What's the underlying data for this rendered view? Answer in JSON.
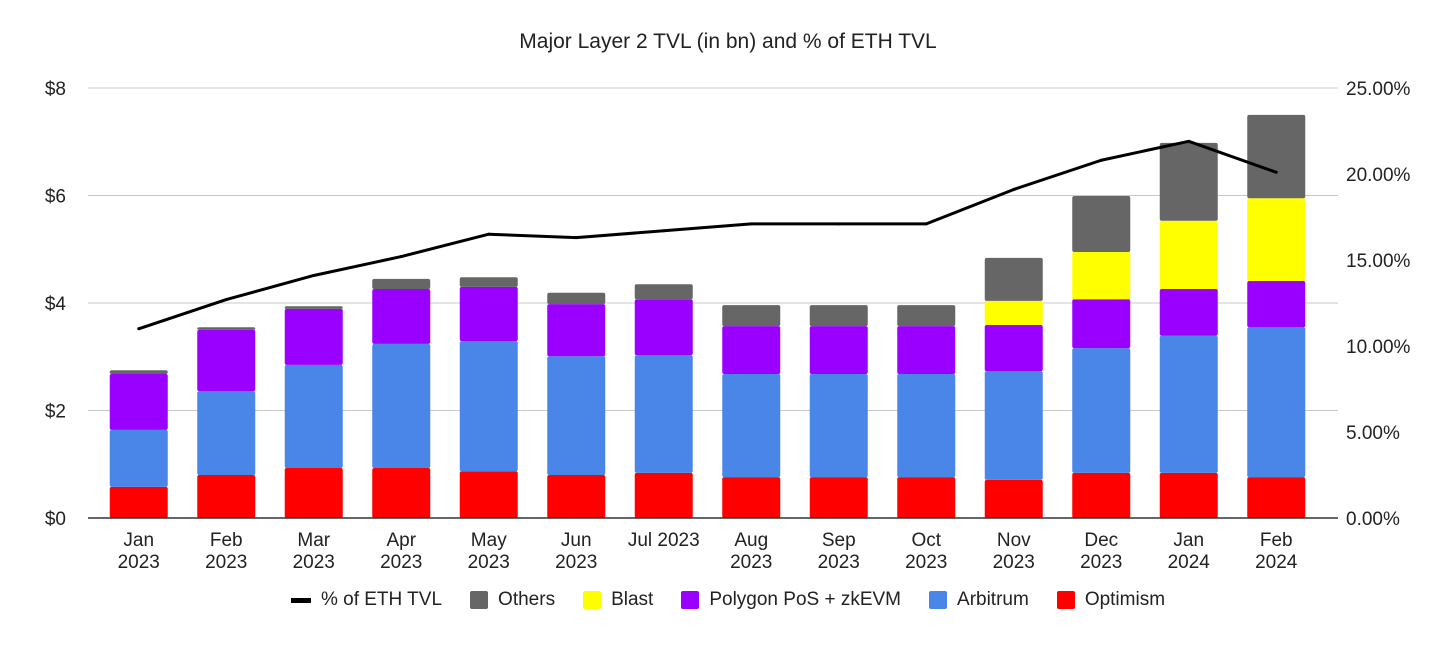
{
  "chart_data": {
    "type": "bar",
    "stacked": true,
    "title": "Major Layer 2 TVL (in bn) and % of ETH TVL",
    "categories": [
      "Jan\n2023",
      "Feb\n2023",
      "Mar\n2023",
      "Apr\n2023",
      "May\n2023",
      "Jun\n2023",
      "Jul 2023",
      "Aug\n2023",
      "Sep\n2023",
      "Oct\n2023",
      "Nov\n2023",
      "Dec\n2023",
      "Jan\n2024",
      "Feb\n2024"
    ],
    "ylim": [
      0,
      8
    ],
    "yticks": [
      "$0",
      "$2",
      "$4",
      "$6",
      "$8"
    ],
    "y2lim": [
      0,
      25
    ],
    "y2ticks": [
      "0.00%",
      "5.00%",
      "10.00%",
      "15.00%",
      "20.00%",
      "25.00%"
    ],
    "grid": true,
    "legend_position": "bottom",
    "series": [
      {
        "name": "Optimism",
        "color": "#ff0000",
        "values": [
          0.58,
          0.8,
          0.93,
          0.93,
          0.87,
          0.8,
          0.84,
          0.76,
          0.76,
          0.76,
          0.71,
          0.84,
          0.84,
          0.76
        ]
      },
      {
        "name": "Arbitrum",
        "color": "#4a86e8",
        "values": [
          1.06,
          1.56,
          1.92,
          2.31,
          2.42,
          2.21,
          2.19,
          1.92,
          1.92,
          1.92,
          2.02,
          2.32,
          2.55,
          2.79
        ]
      },
      {
        "name": "Polygon PoS + zkEVM",
        "color": "#9900ff",
        "values": [
          1.04,
          1.14,
          1.04,
          1.02,
          1.01,
          0.97,
          1.04,
          0.89,
          0.89,
          0.89,
          0.86,
          0.91,
          0.87,
          0.86
        ]
      },
      {
        "name": "Blast",
        "color": "#ffff00",
        "values": [
          0,
          0,
          0,
          0,
          0,
          0,
          0,
          0,
          0,
          0,
          0.45,
          0.88,
          1.27,
          1.54
        ]
      },
      {
        "name": "Others",
        "color": "#666666",
        "values": [
          0.07,
          0.05,
          0.05,
          0.19,
          0.18,
          0.21,
          0.28,
          0.39,
          0.39,
          0.39,
          0.8,
          1.04,
          1.45,
          1.55
        ]
      }
    ],
    "line_series": {
      "name": "% of ETH TVL",
      "color": "#000000",
      "axis": "right",
      "values": [
        11.0,
        12.7,
        14.1,
        15.2,
        16.5,
        16.3,
        16.7,
        17.1,
        17.1,
        17.1,
        19.1,
        20.8,
        21.9,
        20.1
      ]
    },
    "legend_order": [
      "% of ETH TVL",
      "Others",
      "Blast",
      "Polygon PoS + zkEVM",
      "Arbitrum",
      "Optimism"
    ]
  }
}
